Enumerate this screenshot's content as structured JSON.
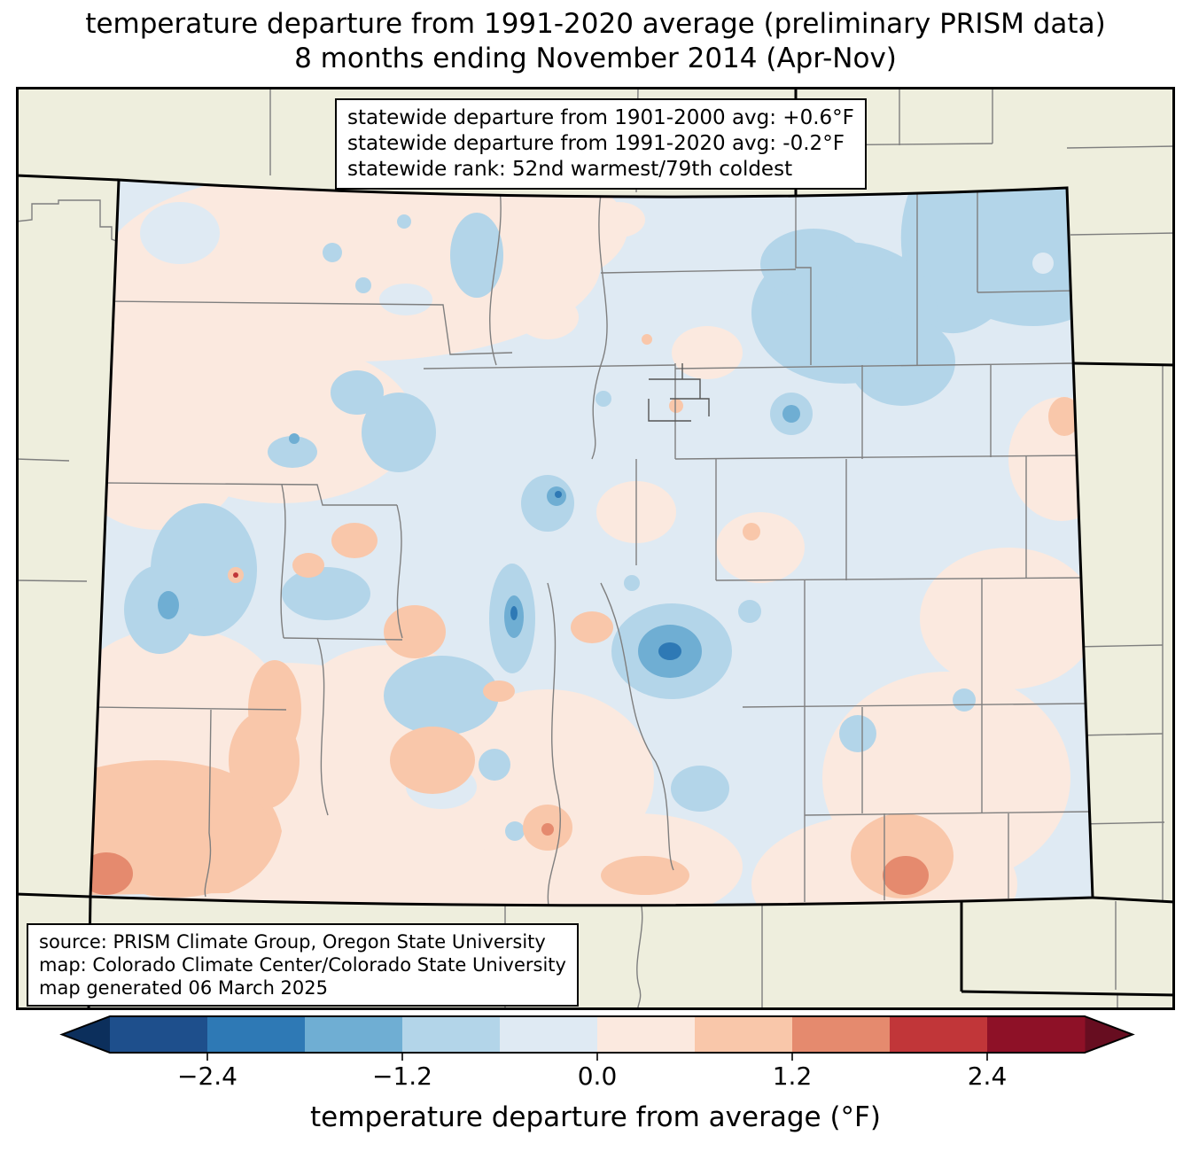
{
  "title": {
    "line1": "temperature departure from 1991-2020 average (preliminary PRISM data)",
    "line2": "8 months ending November 2014 (Apr-Nov)"
  },
  "info_box": {
    "lines": [
      "statewide departure from 1901-2000 avg: +0.6°F",
      "statewide departure from 1991-2020 avg: -0.2°F",
      "statewide rank: 52nd warmest/79th coldest"
    ]
  },
  "credit_box": {
    "lines": [
      "source: PRISM Climate Group, Oregon State University",
      "map: Colorado Climate Center/Colorado State University",
      "map generated 06 March 2025"
    ]
  },
  "colorbar": {
    "label": "temperature departure from average (°F)",
    "ticks": [
      "−2.4",
      "−1.2",
      "0.0",
      "1.2",
      "2.4"
    ],
    "tick_values": [
      -2.4,
      -1.2,
      0.0,
      1.2,
      2.4
    ],
    "range": [
      -3.0,
      3.0
    ],
    "step": 0.6,
    "segment_colors": [
      "#1e4f8c",
      "#2e79b5",
      "#6faed3",
      "#b3d5e9",
      "#dfeaf3",
      "#fbe9df",
      "#f9c7aa",
      "#e58a6e",
      "#c13639",
      "#8e1127"
    ],
    "under_color": "#0c2f5c",
    "over_color": "#670d20"
  },
  "map": {
    "state": "Colorado",
    "palette": {
      "outside_states": "#eeeedd",
      "base_slightly_cool": "#dfeaf3",
      "slightly_warm": "#fbe9df",
      "cool_1": "#b3d5e9",
      "cool_2": "#6faed3",
      "cool_3": "#2e79b5",
      "warm_1": "#f9c7aa",
      "warm_2": "#e58a6e",
      "warm_3": "#c13639",
      "county_line": "#7f7f7f",
      "state_border": "#000000"
    }
  }
}
